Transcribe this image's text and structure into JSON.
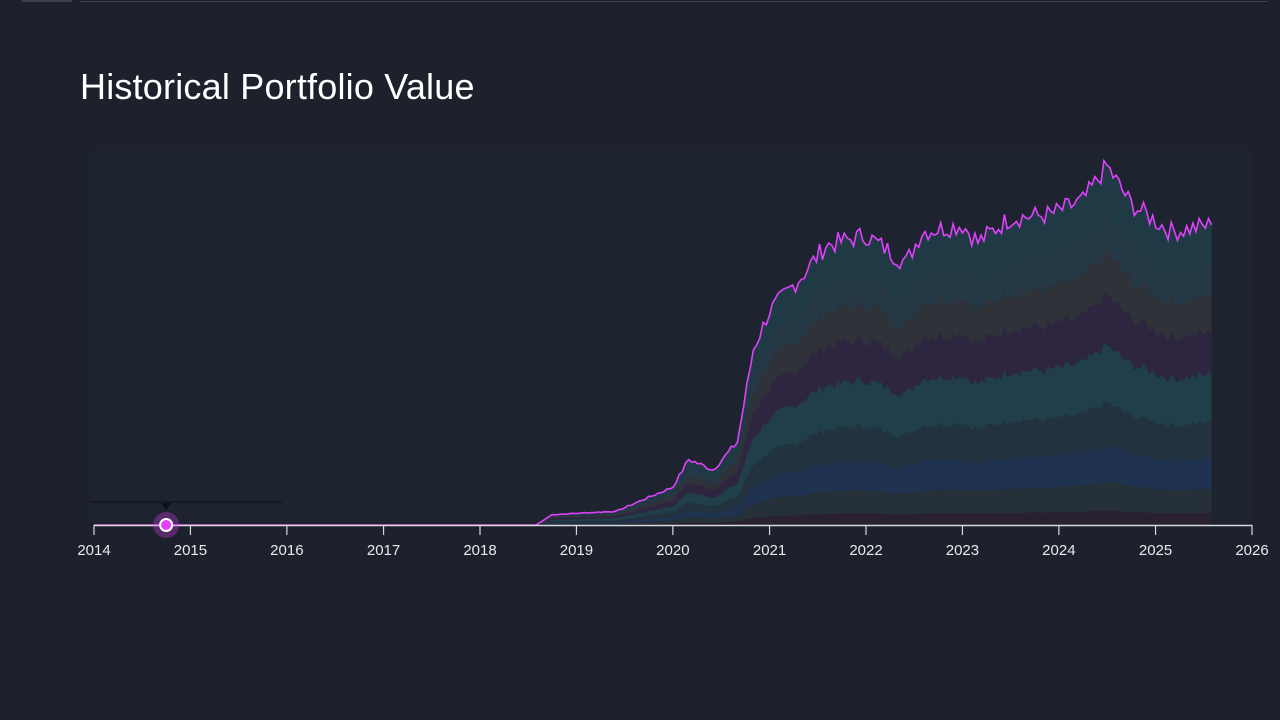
{
  "page": {
    "title": "Historical Portfolio Value"
  },
  "colors": {
    "background": "#1c212c",
    "line": "#e040fb",
    "axis": "#d8d9df",
    "layers": [
      "#2a2130",
      "#263038",
      "#1f3350",
      "#23323f",
      "#213e4b",
      "#2e2540",
      "#30323a",
      "#243845",
      "#1f3a44"
    ]
  },
  "marker": {
    "date": "2014-10-01",
    "value": 0,
    "icon": "playhead-marker-icon"
  },
  "chart_data": {
    "type": "area",
    "title": "Historical Portfolio Value",
    "xlabel": "",
    "ylabel": "",
    "x_ticks": [
      "2014",
      "2015",
      "2016",
      "2017",
      "2018",
      "2019",
      "2020",
      "2021",
      "2022",
      "2023",
      "2024",
      "2025",
      "2026"
    ],
    "xlim": [
      "2014-01-01",
      "2026-01-01"
    ],
    "ylim": [
      0,
      100
    ],
    "y_ticks_visible": false,
    "grid": false,
    "legend": "none",
    "total_series": {
      "name": "",
      "points": [
        [
          "2014-01-01",
          0
        ],
        [
          "2018-08-01",
          0
        ],
        [
          "2018-10-01",
          3
        ],
        [
          "2019-06-01",
          4
        ],
        [
          "2019-10-01",
          8
        ],
        [
          "2020-01-01",
          11
        ],
        [
          "2020-03-01",
          19
        ],
        [
          "2020-06-01",
          16
        ],
        [
          "2020-09-01",
          24
        ],
        [
          "2020-11-01",
          51
        ],
        [
          "2021-01-01",
          62
        ],
        [
          "2021-05-01",
          72
        ],
        [
          "2021-08-01",
          81
        ],
        [
          "2022-01-01",
          84
        ],
        [
          "2022-06-01",
          76
        ],
        [
          "2022-08-01",
          85
        ],
        [
          "2023-01-01",
          87
        ],
        [
          "2023-03-01",
          82
        ],
        [
          "2023-07-01",
          89
        ],
        [
          "2023-12-01",
          90
        ],
        [
          "2024-04-01",
          94
        ],
        [
          "2024-07-01",
          104
        ],
        [
          "2024-10-01",
          93
        ],
        [
          "2025-03-01",
          85
        ],
        [
          "2025-08-01",
          87
        ]
      ]
    },
    "stack_fractions": [
      0.04,
      0.08,
      0.1,
      0.12,
      0.16,
      0.14,
      0.12,
      0.1,
      0.14
    ]
  }
}
